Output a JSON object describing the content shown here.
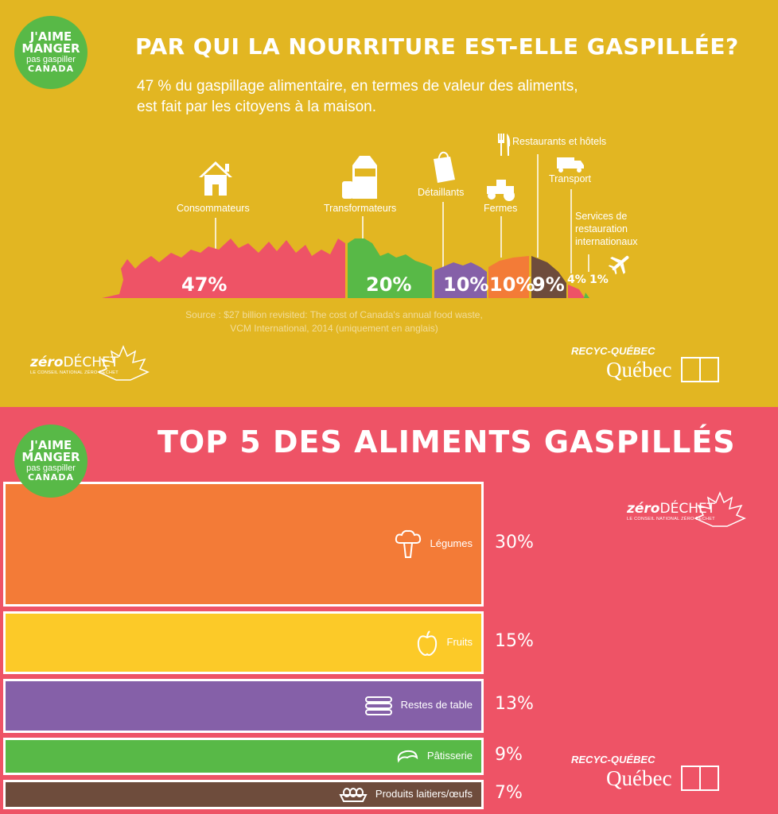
{
  "logo": {
    "line1": "J'AIME",
    "line2": "MANGER",
    "line3": "pas gaspiller",
    "line4": "CANADA"
  },
  "top": {
    "title": "PAR QUI LA NOURRITURE EST-ELLE GASPILLÉE?",
    "subtitle_line1": "47 % du gaspillage alimentaire, en termes de valeur des aliments,",
    "subtitle_line2": "est fait par les citoyens à la maison.",
    "source_line1": "Source : $27 billion revisited: The cost of Canada's annual food waste,",
    "source_line2": "VCM International, 2014 (uniquement en anglais)"
  },
  "zerodechet": {
    "bold": "zéro",
    "rest": "DÉCHET",
    "sub": "LE CONSEIL NATIONAL ZÉRO DÉCHET"
  },
  "recyc": {
    "top": "RECYC-QUÉBEC",
    "gov": "Québec"
  },
  "bottom": {
    "title": "TOP 5 DES ALIMENTS GASPILLÉS"
  },
  "chart_data": [
    {
      "type": "area",
      "title": "PAR QUI LA NOURRITURE EST-ELLE GASPILLÉE?",
      "categories": [
        "Consommateurs",
        "Transformateurs",
        "Détaillants",
        "Fermes",
        "Restaurants et hôtels",
        "Transport",
        "Services de restauration internationaux"
      ],
      "values": [
        47,
        20,
        10,
        10,
        9,
        4,
        1
      ],
      "value_labels": [
        "47%",
        "20%",
        "10%",
        "10%",
        "9%",
        "4%",
        "1%"
      ],
      "unit": "%",
      "colors": [
        "#ee5366",
        "#58b947",
        "#8560a8",
        "#f37b37",
        "#6e4c3c",
        "#ee5366",
        "#58b947"
      ],
      "icons": [
        "house-icon",
        "milk-carton-icon",
        "shopping-bag-icon",
        "tractor-icon",
        "fork-knife-icon",
        "truck-icon",
        "airplane-icon"
      ]
    },
    {
      "type": "bar",
      "title": "TOP 5 DES ALIMENTS GASPILLÉS",
      "categories": [
        "Légumes",
        "Fruits",
        "Restes de table",
        "Pâtisserie",
        "Produits laitiers/œufs"
      ],
      "values": [
        30,
        15,
        13,
        9,
        7
      ],
      "value_labels": [
        "30%",
        "15%",
        "13%",
        "9%",
        "7%"
      ],
      "unit": "%",
      "colors": [
        "#f37b37",
        "#fcca28",
        "#8560a8",
        "#58b947",
        "#6e4c3c"
      ],
      "icons": [
        "broccoli-icon",
        "apple-icon",
        "plates-icon",
        "croissant-icon",
        "egg-carton-icon"
      ]
    }
  ]
}
